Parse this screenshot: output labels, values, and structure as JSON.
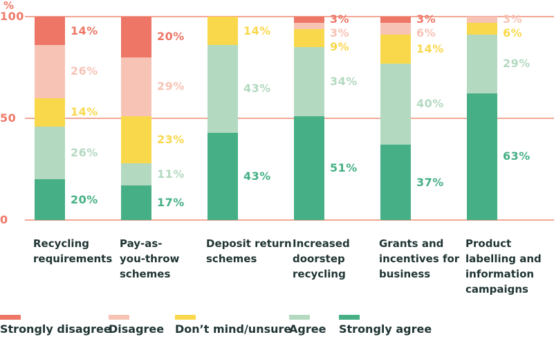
{
  "chart_data": {
    "type": "bar",
    "stacked": true,
    "orientation": "vertical",
    "title": "",
    "value_unit": "%",
    "grid": true,
    "legend_position": "bottom",
    "colors": {
      "gridline": "#F2A795",
      "axis_text": "#EE7968",
      "category_text": "#1F3433",
      "legend_text": "#1F3433",
      "background": "#FFFFFF"
    },
    "y_axis": {
      "unit_label": "%",
      "min": 0,
      "max": 100,
      "ticks": [
        {
          "value": 100,
          "label": "100"
        },
        {
          "value": 50,
          "label": "50"
        },
        {
          "value": 0,
          "label": "0"
        }
      ]
    },
    "categories": [
      {
        "label": "Recycling requirements",
        "lines": [
          "Recycling",
          "requirements"
        ]
      },
      {
        "label": "Pay-as-you-throw schemes",
        "lines": [
          "Pay-as-",
          "you-throw",
          "schemes"
        ]
      },
      {
        "label": "Deposit return schemes",
        "lines": [
          "Deposit return",
          "schemes"
        ]
      },
      {
        "label": "Increased doorstep recycling",
        "lines": [
          "Increased",
          "doorstep",
          "recycling"
        ]
      },
      {
        "label": "Grants and incentives for business",
        "lines": [
          "Grants and",
          "incentives for",
          "business"
        ]
      },
      {
        "label": "Product labelling and information campaigns",
        "lines": [
          "Product",
          "labelling and",
          "information",
          "campaigns"
        ]
      }
    ],
    "series": [
      {
        "name": "Strongly disagree",
        "color": "#ED7666",
        "values": [
          14,
          20,
          0,
          3,
          3,
          0
        ]
      },
      {
        "name": "Disagree",
        "color": "#F7C3B5",
        "values": [
          26,
          29,
          0,
          3,
          6,
          3
        ]
      },
      {
        "name": "Don’t mind/unsure",
        "color": "#FAD84C",
        "values": [
          14,
          23,
          14,
          9,
          14,
          6
        ]
      },
      {
        "name": "Agree",
        "color": "#B3D9C0",
        "values": [
          26,
          11,
          43,
          34,
          40,
          29
        ]
      },
      {
        "name": "Strongly agree",
        "color": "#46AF85",
        "values": [
          20,
          17,
          43,
          51,
          37,
          63
        ]
      }
    ],
    "data_label_format": "{value}%"
  }
}
